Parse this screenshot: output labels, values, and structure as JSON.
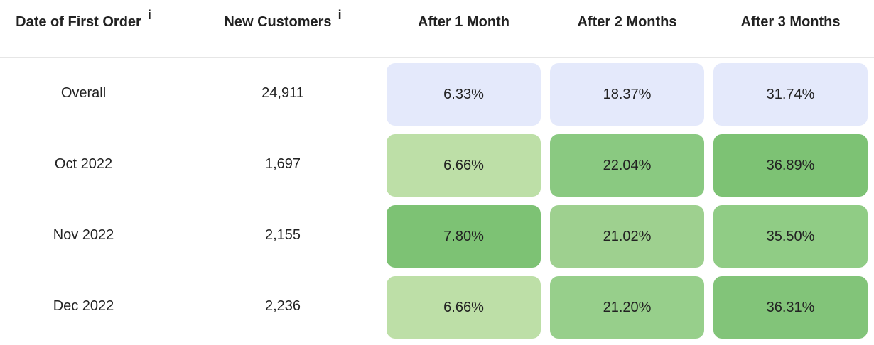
{
  "chart_data": {
    "type": "table",
    "columns": [
      {
        "label": "Date of First Order",
        "info_icon": "i"
      },
      {
        "label": "New Customers",
        "info_icon": "i"
      },
      {
        "label": "After 1 Month"
      },
      {
        "label": "After 2 Months"
      },
      {
        "label": "After 3 Months"
      }
    ],
    "rows": [
      {
        "label": "Overall",
        "customers": "24,911",
        "values": [
          "6.33%",
          "18.37%",
          "31.74%"
        ],
        "colors": [
          "#e4e9fb",
          "#e4e9fb",
          "#e4e9fb"
        ]
      },
      {
        "label": "Oct 2022",
        "customers": "1,697",
        "values": [
          "6.66%",
          "22.04%",
          "36.89%"
        ],
        "colors": [
          "#bddfa7",
          "#8ac981",
          "#7dc274"
        ]
      },
      {
        "label": "Nov 2022",
        "customers": "2,155",
        "values": [
          "7.80%",
          "21.02%",
          "35.50%"
        ],
        "colors": [
          "#7dc274",
          "#9ed08f",
          "#90cc85"
        ]
      },
      {
        "label": "Dec 2022",
        "customers": "2,236",
        "values": [
          "6.66%",
          "21.20%",
          "36.31%"
        ],
        "colors": [
          "#bddfa7",
          "#97cf8b",
          "#82c479"
        ]
      }
    ]
  }
}
